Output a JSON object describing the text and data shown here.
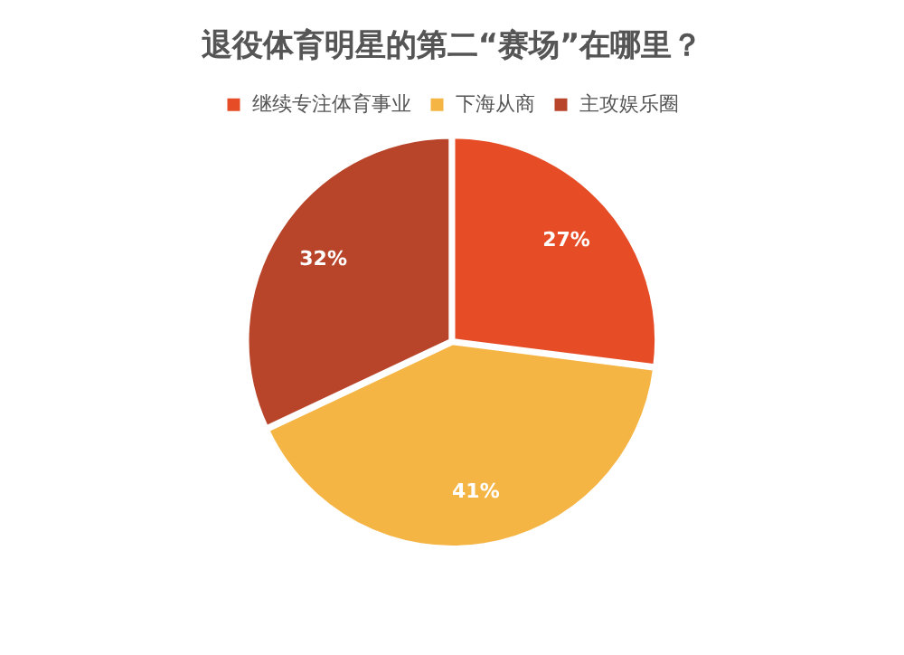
{
  "chart_data": {
    "type": "pie",
    "title": "退役体育明星的第二“赛场”在哪里？",
    "categories": [
      "继续专注体育事业",
      "下海从商",
      "主攻娱乐圈"
    ],
    "values": [
      27,
      41,
      32
    ],
    "colors": [
      "#e64d26",
      "#f5b544",
      "#b8442a"
    ],
    "value_labels": [
      "27%",
      "41%",
      "32%"
    ],
    "legend": "top"
  }
}
